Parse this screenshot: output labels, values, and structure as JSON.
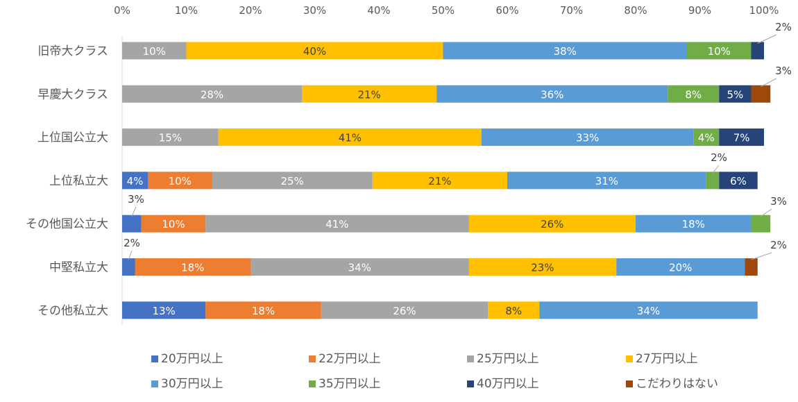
{
  "chart_data": {
    "type": "bar",
    "orientation": "horizontal",
    "stacked": "percent",
    "xlim": [
      0,
      100
    ],
    "x_tick_labels": [
      "0%",
      "10%",
      "20%",
      "30%",
      "40%",
      "50%",
      "60%",
      "70%",
      "80%",
      "90%",
      "100%"
    ],
    "x_axis_position": "top",
    "grid": false,
    "legend_position": "bottom",
    "categories": [
      "旧帝大クラス",
      "早慶大クラス",
      "上位国公立大",
      "上位私立大",
      "その他国公立大",
      "中堅私立大",
      "その他私立大"
    ],
    "series": [
      {
        "name": "20万円以上",
        "color": "#4472C4",
        "label_color": "#ffffff",
        "values": [
          0,
          0,
          0,
          4,
          3,
          2,
          13
        ],
        "labels": [
          "",
          "",
          "",
          "4%",
          "3%",
          "2%",
          "13%"
        ]
      },
      {
        "name": "22万円以上",
        "color": "#ED7D31",
        "label_color": "#ffffff",
        "values": [
          0,
          0,
          0,
          10,
          10,
          18,
          18
        ],
        "labels": [
          "",
          "",
          "",
          "10%",
          "10%",
          "18%",
          "18%"
        ]
      },
      {
        "name": "25万円以上",
        "color": "#A5A5A5",
        "label_color": "#ffffff",
        "values": [
          10,
          28,
          15,
          25,
          41,
          34,
          26
        ],
        "labels": [
          "10%",
          "28%",
          "15%",
          "25%",
          "41%",
          "34%",
          "26%"
        ]
      },
      {
        "name": "27万円以上",
        "color": "#FFC000",
        "label_color": "#404040",
        "values": [
          40,
          21,
          41,
          21,
          26,
          23,
          8
        ],
        "labels": [
          "40%",
          "21%",
          "41%",
          "21%",
          "26%",
          "23%",
          "8%"
        ]
      },
      {
        "name": "30万円以上",
        "color": "#5B9BD5",
        "label_color": "#ffffff",
        "values": [
          38,
          36,
          33,
          31,
          18,
          20,
          34
        ],
        "labels": [
          "38%",
          "36%",
          "33%",
          "31%",
          "18%",
          "20%",
          "34%"
        ]
      },
      {
        "name": "35万円以上",
        "color": "#70AD47",
        "label_color": "#ffffff",
        "values": [
          10,
          8,
          4,
          2,
          3,
          0,
          0
        ],
        "labels": [
          "10%",
          "8%",
          "4%",
          "2%",
          "3%",
          "",
          ""
        ]
      },
      {
        "name": "40万円以上",
        "color": "#264478",
        "label_color": "#ffffff",
        "values": [
          2,
          5,
          7,
          6,
          0,
          0,
          0
        ],
        "labels": [
          "2%",
          "5%",
          "7%",
          "6%",
          "",
          "",
          ""
        ]
      },
      {
        "name": "こだわりはない",
        "color": "#9E480E",
        "label_color": "#ffffff",
        "values": [
          0,
          3,
          0,
          0,
          0,
          2,
          0
        ],
        "labels": [
          "",
          "3%",
          "",
          "",
          "",
          "2%",
          ""
        ]
      }
    ]
  }
}
